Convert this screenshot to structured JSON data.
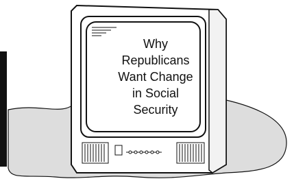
{
  "screen_text": [
    "Why",
    "Republicans",
    "Want Change",
    "in Social",
    "Security"
  ]
}
